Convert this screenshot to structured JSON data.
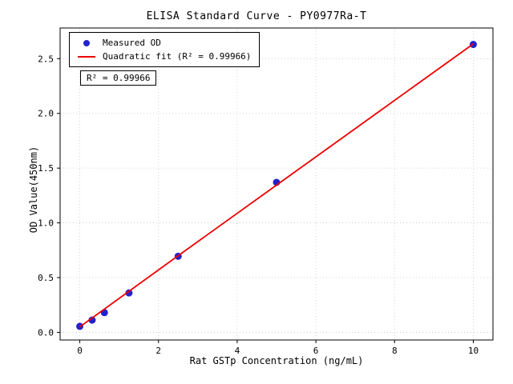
{
  "chart_data": {
    "type": "scatter",
    "title": "ELISA Standard Curve - PY0977Ra-T",
    "xlabel": "Rat GSTp Concentration (ng/mL)",
    "ylabel": "OD Value(450nm)",
    "xlim": [
      -0.5,
      10.5
    ],
    "ylim": [
      -0.07,
      2.78
    ],
    "xticks": [
      0,
      2,
      4,
      6,
      8,
      10
    ],
    "yticks": [
      0.0,
      0.5,
      1.0,
      1.5,
      2.0,
      2.5
    ],
    "grid": true,
    "legend_position": "upper-left",
    "annotation": "R² = 0.99966",
    "colors": {
      "point": "#2222cc",
      "fit_line": "#ee0000"
    },
    "series": [
      {
        "name": "Measured OD",
        "type": "scatter",
        "color": "#2222cc",
        "points": [
          [
            0,
            0.055
          ],
          [
            0.313,
            0.112
          ],
          [
            0.625,
            0.18
          ],
          [
            1.25,
            0.36
          ],
          [
            2.5,
            0.695
          ],
          [
            5,
            1.37
          ],
          [
            10,
            2.63
          ]
        ]
      },
      {
        "name": "Quadratic fit (R² = 0.99966)",
        "type": "line",
        "color": "#ee0000",
        "points": [
          [
            0,
            0.05
          ],
          [
            2.5,
            0.7
          ],
          [
            5,
            1.345
          ],
          [
            7.5,
            1.99
          ],
          [
            10,
            2.635
          ]
        ]
      }
    ]
  }
}
